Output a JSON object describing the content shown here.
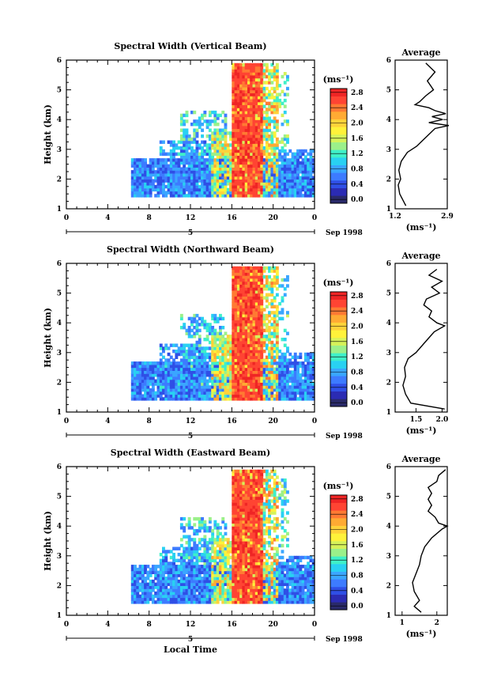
{
  "figure": {
    "date_label": "Sep 1998",
    "x_label": "Local Time",
    "date_day": "5",
    "y_label": "Height (km)",
    "colorbar_unit": "(ms⁻¹)",
    "average_title": "Average",
    "average_unit": "(ms⁻¹)"
  },
  "chart_data": [
    {
      "type": "heatmap",
      "title": "Spectral Width (Vertical Beam)",
      "xlabel": "",
      "ylabel": "Height (km)",
      "xlim": [
        0,
        24
      ],
      "ylim": [
        1,
        6
      ],
      "x_ticks": [
        "0",
        "4",
        "8",
        "12",
        "16",
        "20",
        "0"
      ],
      "y_ticks": [
        "1",
        "2",
        "3",
        "4",
        "5",
        "6"
      ],
      "colorbar": {
        "ticks": [
          "0.0",
          "0.4",
          "0.8",
          "1.2",
          "1.6",
          "2.0",
          "2.4",
          "2.8"
        ],
        "range": [
          0,
          3.0
        ]
      },
      "average_profile": {
        "xlim": [
          1.2,
          2.9
        ],
        "x_ticks": [
          "1.2",
          "2.9"
        ],
        "height": [
          1.1,
          1.3,
          1.5,
          1.8,
          2.0,
          2.3,
          2.6,
          2.9,
          3.1,
          3.3,
          3.5,
          3.7,
          3.8,
          3.9,
          4.0,
          4.1,
          4.2,
          4.3,
          4.4,
          4.5,
          4.6,
          4.8,
          5.0,
          5.3,
          5.6,
          5.9
        ],
        "width": [
          1.55,
          1.45,
          1.35,
          1.3,
          1.38,
          1.32,
          1.4,
          1.6,
          1.9,
          2.1,
          2.3,
          2.5,
          2.95,
          2.3,
          2.75,
          2.4,
          2.85,
          2.5,
          2.3,
          1.85,
          2.0,
          2.2,
          2.45,
          2.25,
          2.5,
          2.2
        ]
      }
    },
    {
      "type": "heatmap",
      "title": "Spectral Width (Northward Beam)",
      "xlabel": "",
      "ylabel": "Height (km)",
      "xlim": [
        0,
        24
      ],
      "ylim": [
        1,
        6
      ],
      "x_ticks": [
        "0",
        "4",
        "8",
        "12",
        "16",
        "20",
        "0"
      ],
      "y_ticks": [
        "1",
        "2",
        "3",
        "4",
        "5",
        "6"
      ],
      "colorbar": {
        "ticks": [
          "0.0",
          "0.4",
          "0.8",
          "1.2",
          "1.6",
          "2.0",
          "2.4",
          "2.8"
        ],
        "range": [
          0,
          3.0
        ]
      },
      "average_profile": {
        "xlim": [
          1.1,
          2.1
        ],
        "x_ticks": [
          "1.5",
          "2.0"
        ],
        "height": [
          1.1,
          1.3,
          1.6,
          1.9,
          2.2,
          2.5,
          2.8,
          3.0,
          3.3,
          3.5,
          3.7,
          3.9,
          4.0,
          4.2,
          4.4,
          4.6,
          4.8,
          5.0,
          5.2,
          5.4,
          5.6,
          5.8
        ],
        "width": [
          2.05,
          1.4,
          1.3,
          1.25,
          1.3,
          1.28,
          1.35,
          1.5,
          1.65,
          1.75,
          1.85,
          2.05,
          1.9,
          1.75,
          1.8,
          1.65,
          1.7,
          1.95,
          1.8,
          2.0,
          1.75,
          1.9
        ]
      }
    },
    {
      "type": "heatmap",
      "title": "Spectral Width (Eastward Beam)",
      "xlabel": "Local Time",
      "ylabel": "Height (km)",
      "xlim": [
        0,
        24
      ],
      "ylim": [
        1,
        6
      ],
      "x_ticks": [
        "0",
        "4",
        "8",
        "12",
        "16",
        "20",
        "0"
      ],
      "y_ticks": [
        "1",
        "2",
        "3",
        "4",
        "5",
        "6"
      ],
      "colorbar": {
        "ticks": [
          "0.0",
          "0.4",
          "0.8",
          "1.2",
          "1.6",
          "2.0",
          "2.4",
          "2.8"
        ],
        "range": [
          0,
          3.0
        ]
      },
      "average_profile": {
        "xlim": [
          0.8,
          2.3
        ],
        "x_ticks": [
          "1",
          "2"
        ],
        "height": [
          1.1,
          1.3,
          1.5,
          1.8,
          2.1,
          2.4,
          2.7,
          3.0,
          3.3,
          3.6,
          3.9,
          4.0,
          4.1,
          4.3,
          4.5,
          4.7,
          4.9,
          5.1,
          5.3,
          5.5,
          5.7,
          5.9
        ],
        "width": [
          1.55,
          1.35,
          1.5,
          1.35,
          1.3,
          1.4,
          1.5,
          1.55,
          1.65,
          1.85,
          2.15,
          2.3,
          2.05,
          1.95,
          1.75,
          1.85,
          1.75,
          1.85,
          1.75,
          2.0,
          2.05,
          2.25
        ]
      }
    }
  ]
}
